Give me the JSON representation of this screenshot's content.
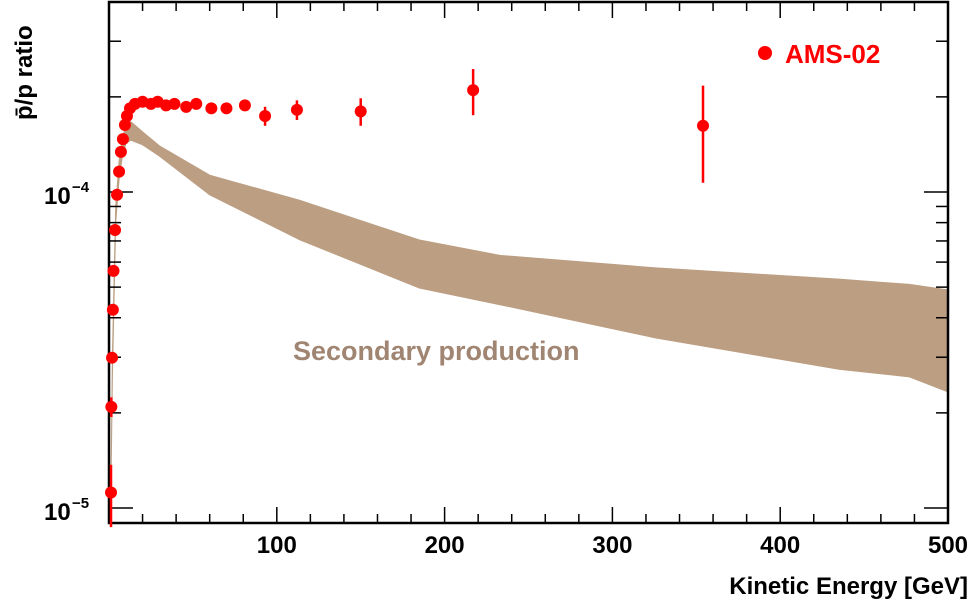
{
  "chart_data": {
    "type": "scatter",
    "title": "",
    "xlabel": "Kinetic Energy [GeV]",
    "ylabel": "p̄/p ratio",
    "xlim": [
      0,
      500
    ],
    "ylim": [
      9e-06,
      0.0004
    ],
    "yscale": "log",
    "grid": false,
    "legend": {
      "placement": "top-right",
      "entries": [
        "AMS-02"
      ]
    },
    "x_ticks": [
      {
        "value": 100,
        "label": "100"
      },
      {
        "value": 200,
        "label": "200"
      },
      {
        "value": 300,
        "label": "300"
      },
      {
        "value": 400,
        "label": "400"
      },
      {
        "value": 500,
        "label": "500"
      }
    ],
    "y_ticks": [
      {
        "value": 0.0001,
        "base": "10",
        "exp": "−4"
      },
      {
        "value": 1e-05,
        "base": "10",
        "exp": "−5"
      }
    ],
    "colors": {
      "data": "#ff0000",
      "band": "#bc9e82",
      "band_label": "#a08672",
      "axis": "#000000"
    },
    "series": [
      {
        "name": "AMS-02",
        "x": [
          1.2,
          1.4,
          1.8,
          2.3,
          2.7,
          3.6,
          4.8,
          6.0,
          7.1,
          8.3,
          9.5,
          10.7,
          12.5,
          15.5,
          20,
          25,
          29,
          34,
          39,
          46,
          52,
          61,
          70,
          81,
          93,
          112,
          150,
          217,
          354
        ],
        "y": [
          1.12e-05,
          2.09e-05,
          2.99e-05,
          4.24e-05,
          5.63e-05,
          7.58e-05,
          9.8e-05,
          0.000116,
          0.000134,
          0.000147,
          0.000163,
          0.000174,
          0.000184,
          0.00019,
          0.000193,
          0.00019,
          0.000193,
          0.000188,
          0.00019,
          0.000186,
          0.00019,
          0.000184,
          0.000184,
          0.000188,
          0.000174,
          0.000182,
          0.00018,
          0.00021,
          0.000162
        ],
        "y_err": [
          2.5e-06,
          1.5e-06,
          1e-06,
          1e-06,
          1e-06,
          1e-06,
          1e-06,
          1e-06,
          1e-06,
          1e-06,
          1e-06,
          1e-06,
          1e-06,
          1e-06,
          1e-06,
          1e-06,
          1e-06,
          1e-06,
          1e-06,
          1e-06,
          1e-06,
          1e-06,
          1e-06,
          1e-06,
          1.2e-05,
          1.3e-05,
          1.8e-05,
          3.5e-05,
          5.5e-05
        ]
      }
    ],
    "band": {
      "name": "Secondary production",
      "x": [
        1,
        2,
        4,
        6,
        8,
        10,
        13,
        20,
        30,
        60,
        114,
        185,
        233,
        326,
        435,
        477,
        500
      ],
      "upper": [
        1e-05,
        3e-05,
        9e-05,
        0.000125,
        0.000148,
        0.000162,
        0.000167,
        0.000155,
        0.00014,
        0.000113,
        9.4e-05,
        7.05e-05,
        6.3e-05,
        5.75e-05,
        5.3e-05,
        5.1e-05,
        4.9e-05
      ],
      "lower": [
        1e-05,
        2.6e-05,
        8e-05,
        0.00011,
        0.00013,
        0.000142,
        0.000146,
        0.000141,
        0.00013,
        9.8e-05,
        7.05e-05,
        4.97e-05,
        4.4e-05,
        3.45e-05,
        2.75e-05,
        2.6e-05,
        2.33e-05
      ]
    },
    "annotations": [
      {
        "text": "Secondary production"
      }
    ]
  }
}
